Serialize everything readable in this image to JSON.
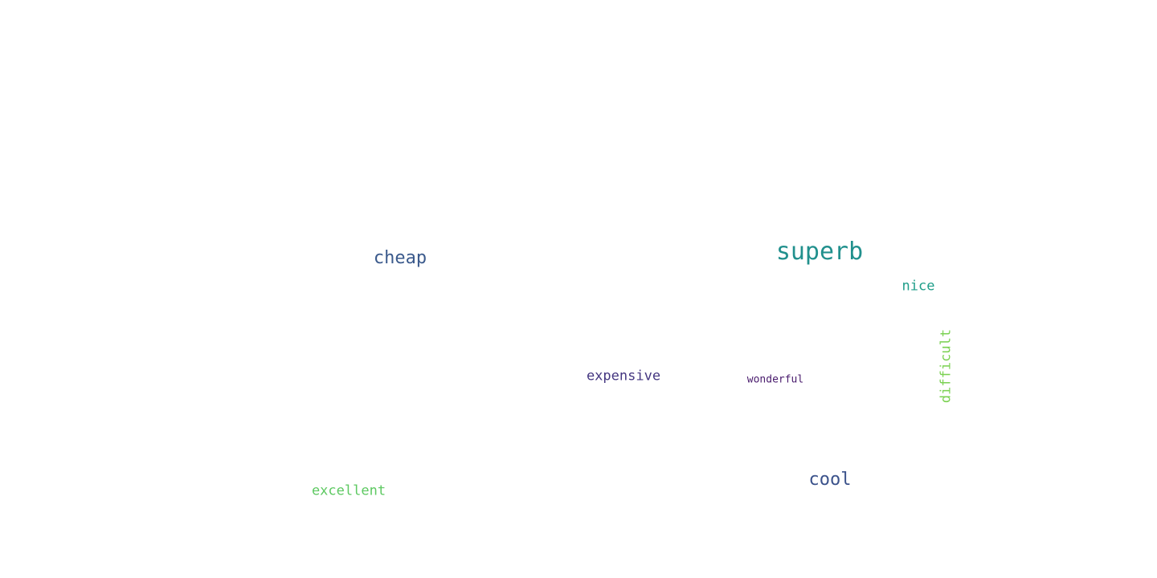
{
  "words": [
    {
      "id": "superb",
      "text": "superb",
      "color": "#21908d",
      "orientation": "horizontal"
    },
    {
      "id": "cheap",
      "text": "cheap",
      "color": "#3b5a8c",
      "orientation": "horizontal"
    },
    {
      "id": "nice",
      "text": "nice",
      "color": "#1f9e89",
      "orientation": "horizontal"
    },
    {
      "id": "difficult",
      "text": "difficult",
      "color": "#7ad151",
      "orientation": "vertical"
    },
    {
      "id": "expensive",
      "text": "expensive",
      "color": "#453781",
      "orientation": "horizontal"
    },
    {
      "id": "wonderful",
      "text": "wonderful",
      "color": "#481a6c",
      "orientation": "horizontal"
    },
    {
      "id": "cool",
      "text": "cool",
      "color": "#3b528b",
      "orientation": "horizontal"
    },
    {
      "id": "excellent",
      "text": "excellent",
      "color": "#5ec962",
      "orientation": "horizontal"
    }
  ]
}
